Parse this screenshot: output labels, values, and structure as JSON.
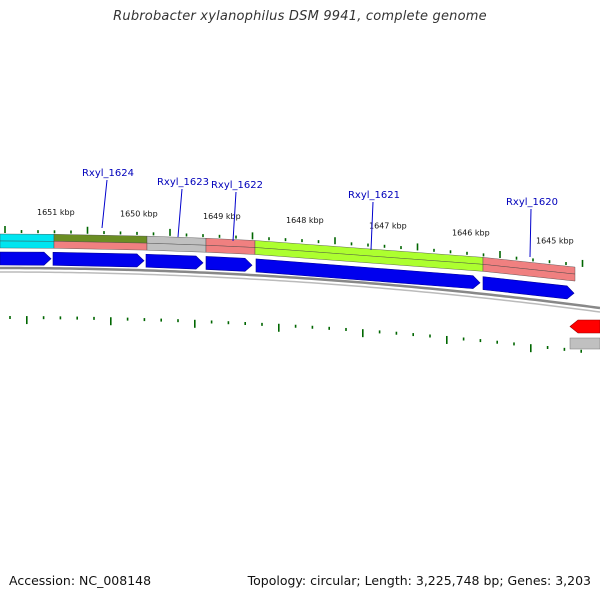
{
  "title": "Rubrobacter xylanophilus DSM 9941, complete genome",
  "accession": "Accession: NC_008148",
  "topology": "Topology: circular; Length: 3,225,748 bp; Genes: 3,203",
  "colors": {
    "cds": "#0000ee",
    "cds_outline": "#000099",
    "minus_strand": "#ff0000",
    "backbone": "#888888",
    "tick": "#006600",
    "gene_label": "#0000bb",
    "gene_line": "#0000cc"
  },
  "kbp_labels": [
    "1651 kbp",
    "1650 kbp",
    "1649 kbp",
    "1648 kbp",
    "1647 kbp",
    "1646 kbp",
    "1645 kbp"
  ],
  "gene_labels": [
    "Rxyl_1624",
    "Rxyl_1623",
    "Rxyl_1622",
    "Rxyl_1621",
    "Rxyl_1620"
  ],
  "feature_colors": [
    "#00e5f0",
    "#6b8e23",
    "#c0c0c0",
    "#f08080",
    "#adff2f",
    "#f08080"
  ],
  "feature_colors_lower": [
    "#00e5f0",
    "#f08080",
    "#c0c0c0",
    "#f08080",
    "#adff2f",
    "#f08080"
  ]
}
